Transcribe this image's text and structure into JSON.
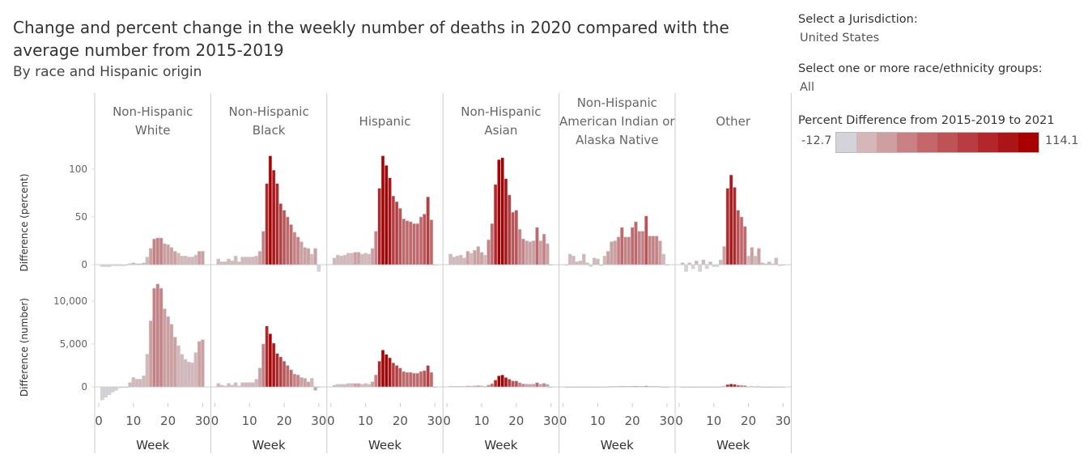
{
  "title": "Change and percent change in the weekly number of deaths in 2020 compared with the average number from 2015-2019",
  "subtitle": "By race and Hispanic origin",
  "filters": {
    "jurisdiction_label": "Select a Jurisdiction:",
    "jurisdiction_value": "United States",
    "race_label": "Select one or more race/ethnicity groups:",
    "race_value": "All"
  },
  "legend": {
    "title": "Percent Difference from 2015-2019 to 2021",
    "min": "-12.7",
    "max": "114.1",
    "colors": [
      "#d3d3d9",
      "#d5b7ba",
      "#cf9ea0",
      "#c98084",
      "#c3676b",
      "#bd5357",
      "#b83d41",
      "#b3272b",
      "#ad1418",
      "#a80000"
    ]
  },
  "chart_data": {
    "type": "bar",
    "xlabel": "Week",
    "x_ticks": [
      "0",
      "10",
      "20",
      "30"
    ],
    "x_range": [
      0,
      30
    ],
    "rows": [
      {
        "ylabel": "Difference (percent)",
        "ylim": [
          -15,
          130
        ],
        "ticks": [
          {
            "v": 0,
            "label": "0"
          },
          {
            "v": 50,
            "label": "50"
          },
          {
            "v": 100,
            "label": "100"
          }
        ]
      },
      {
        "ylabel": "Difference (number)",
        "ylim": [
          -2500,
          13000
        ],
        "ticks": [
          {
            "v": 0,
            "label": "0"
          },
          {
            "v": 5000,
            "label": "5,000"
          },
          {
            "v": 10000,
            "label": "10,000"
          }
        ]
      }
    ],
    "groups": [
      {
        "name": "Non-Hispanic White",
        "percent": [
          -2,
          -2,
          -2,
          -1,
          -1,
          -1,
          -1,
          0,
          1,
          2,
          1,
          1,
          2,
          8,
          17,
          27,
          28,
          28,
          22,
          21,
          18,
          14,
          12,
          9,
          9,
          8,
          8,
          10,
          14,
          14
        ],
        "number": [
          -1500,
          -1200,
          -900,
          -600,
          -400,
          -100,
          0,
          0,
          500,
          1100,
          900,
          900,
          1300,
          3800,
          7700,
          11500,
          12000,
          11500,
          9100,
          8200,
          7300,
          5800,
          4800,
          3800,
          3200,
          2900,
          2800,
          4000,
          5300,
          5500
        ]
      },
      {
        "name": "Non-Hispanic Black",
        "percent": [
          6,
          3,
          3,
          6,
          4,
          9,
          3,
          8,
          8,
          8,
          8,
          9,
          14,
          35,
          85,
          114,
          99,
          85,
          64,
          57,
          50,
          42,
          34,
          29,
          24,
          18,
          17,
          11,
          17,
          -7
        ],
        "number": [
          400,
          200,
          100,
          400,
          200,
          500,
          100,
          500,
          500,
          500,
          500,
          900,
          2200,
          5000,
          7100,
          6200,
          5100,
          3900,
          3500,
          3000,
          2500,
          2000,
          1500,
          1400,
          1100,
          1000,
          600,
          1000,
          -400,
          0
        ]
      },
      {
        "name": "Hispanic",
        "percent": [
          7,
          10,
          9,
          10,
          12,
          12,
          13,
          13,
          11,
          12,
          11,
          17,
          35,
          80,
          114,
          104,
          91,
          72,
          66,
          59,
          48,
          46,
          45,
          43,
          43,
          50,
          53,
          71,
          47,
          0
        ],
        "number": [
          200,
          300,
          300,
          300,
          400,
          400,
          400,
          400,
          300,
          400,
          300,
          600,
          1400,
          3000,
          4300,
          3800,
          3400,
          2800,
          2500,
          2200,
          1800,
          1700,
          1700,
          1600,
          1600,
          1800,
          1900,
          2500,
          1700,
          0
        ]
      },
      {
        "name": "Non-Hispanic Asian",
        "percent": [
          11,
          8,
          9,
          10,
          7,
          14,
          12,
          15,
          19,
          13,
          10,
          26,
          43,
          84,
          110,
          112,
          90,
          73,
          55,
          57,
          37,
          27,
          25,
          24,
          25,
          39,
          25,
          32,
          22,
          0
        ],
        "number": [
          80,
          60,
          70,
          80,
          60,
          110,
          100,
          120,
          160,
          110,
          80,
          220,
          380,
          800,
          1300,
          1400,
          1100,
          900,
          700,
          700,
          500,
          350,
          330,
          320,
          330,
          500,
          330,
          420,
          300,
          0
        ]
      },
      {
        "name": "Non-Hispanic American Indian or Alaska Native",
        "percent": [
          0,
          11,
          9,
          3,
          4,
          11,
          2,
          -2,
          7,
          6,
          -1,
          9,
          14,
          24,
          25,
          29,
          39,
          29,
          29,
          39,
          45,
          35,
          35,
          51,
          30,
          30,
          30,
          25,
          11,
          0
        ],
        "number": [
          0,
          20,
          20,
          10,
          10,
          20,
          5,
          -5,
          15,
          15,
          0,
          20,
          30,
          50,
          50,
          60,
          80,
          60,
          60,
          80,
          90,
          70,
          70,
          100,
          60,
          60,
          60,
          50,
          20,
          0
        ]
      },
      {
        "name": "Other",
        "percent": [
          2,
          -7,
          2,
          -4,
          4,
          -7,
          5,
          -4,
          3,
          -2,
          -2,
          5,
          19,
          80,
          94,
          81,
          57,
          50,
          40,
          9,
          18,
          9,
          17,
          2,
          1,
          3,
          1,
          7,
          -1,
          0
        ],
        "number": [
          10,
          -40,
          10,
          -20,
          20,
          -40,
          30,
          -20,
          20,
          -10,
          -10,
          30,
          90,
          280,
          340,
          300,
          210,
          180,
          150,
          30,
          70,
          30,
          60,
          10,
          5,
          10,
          5,
          25,
          -5,
          0
        ]
      }
    ]
  }
}
